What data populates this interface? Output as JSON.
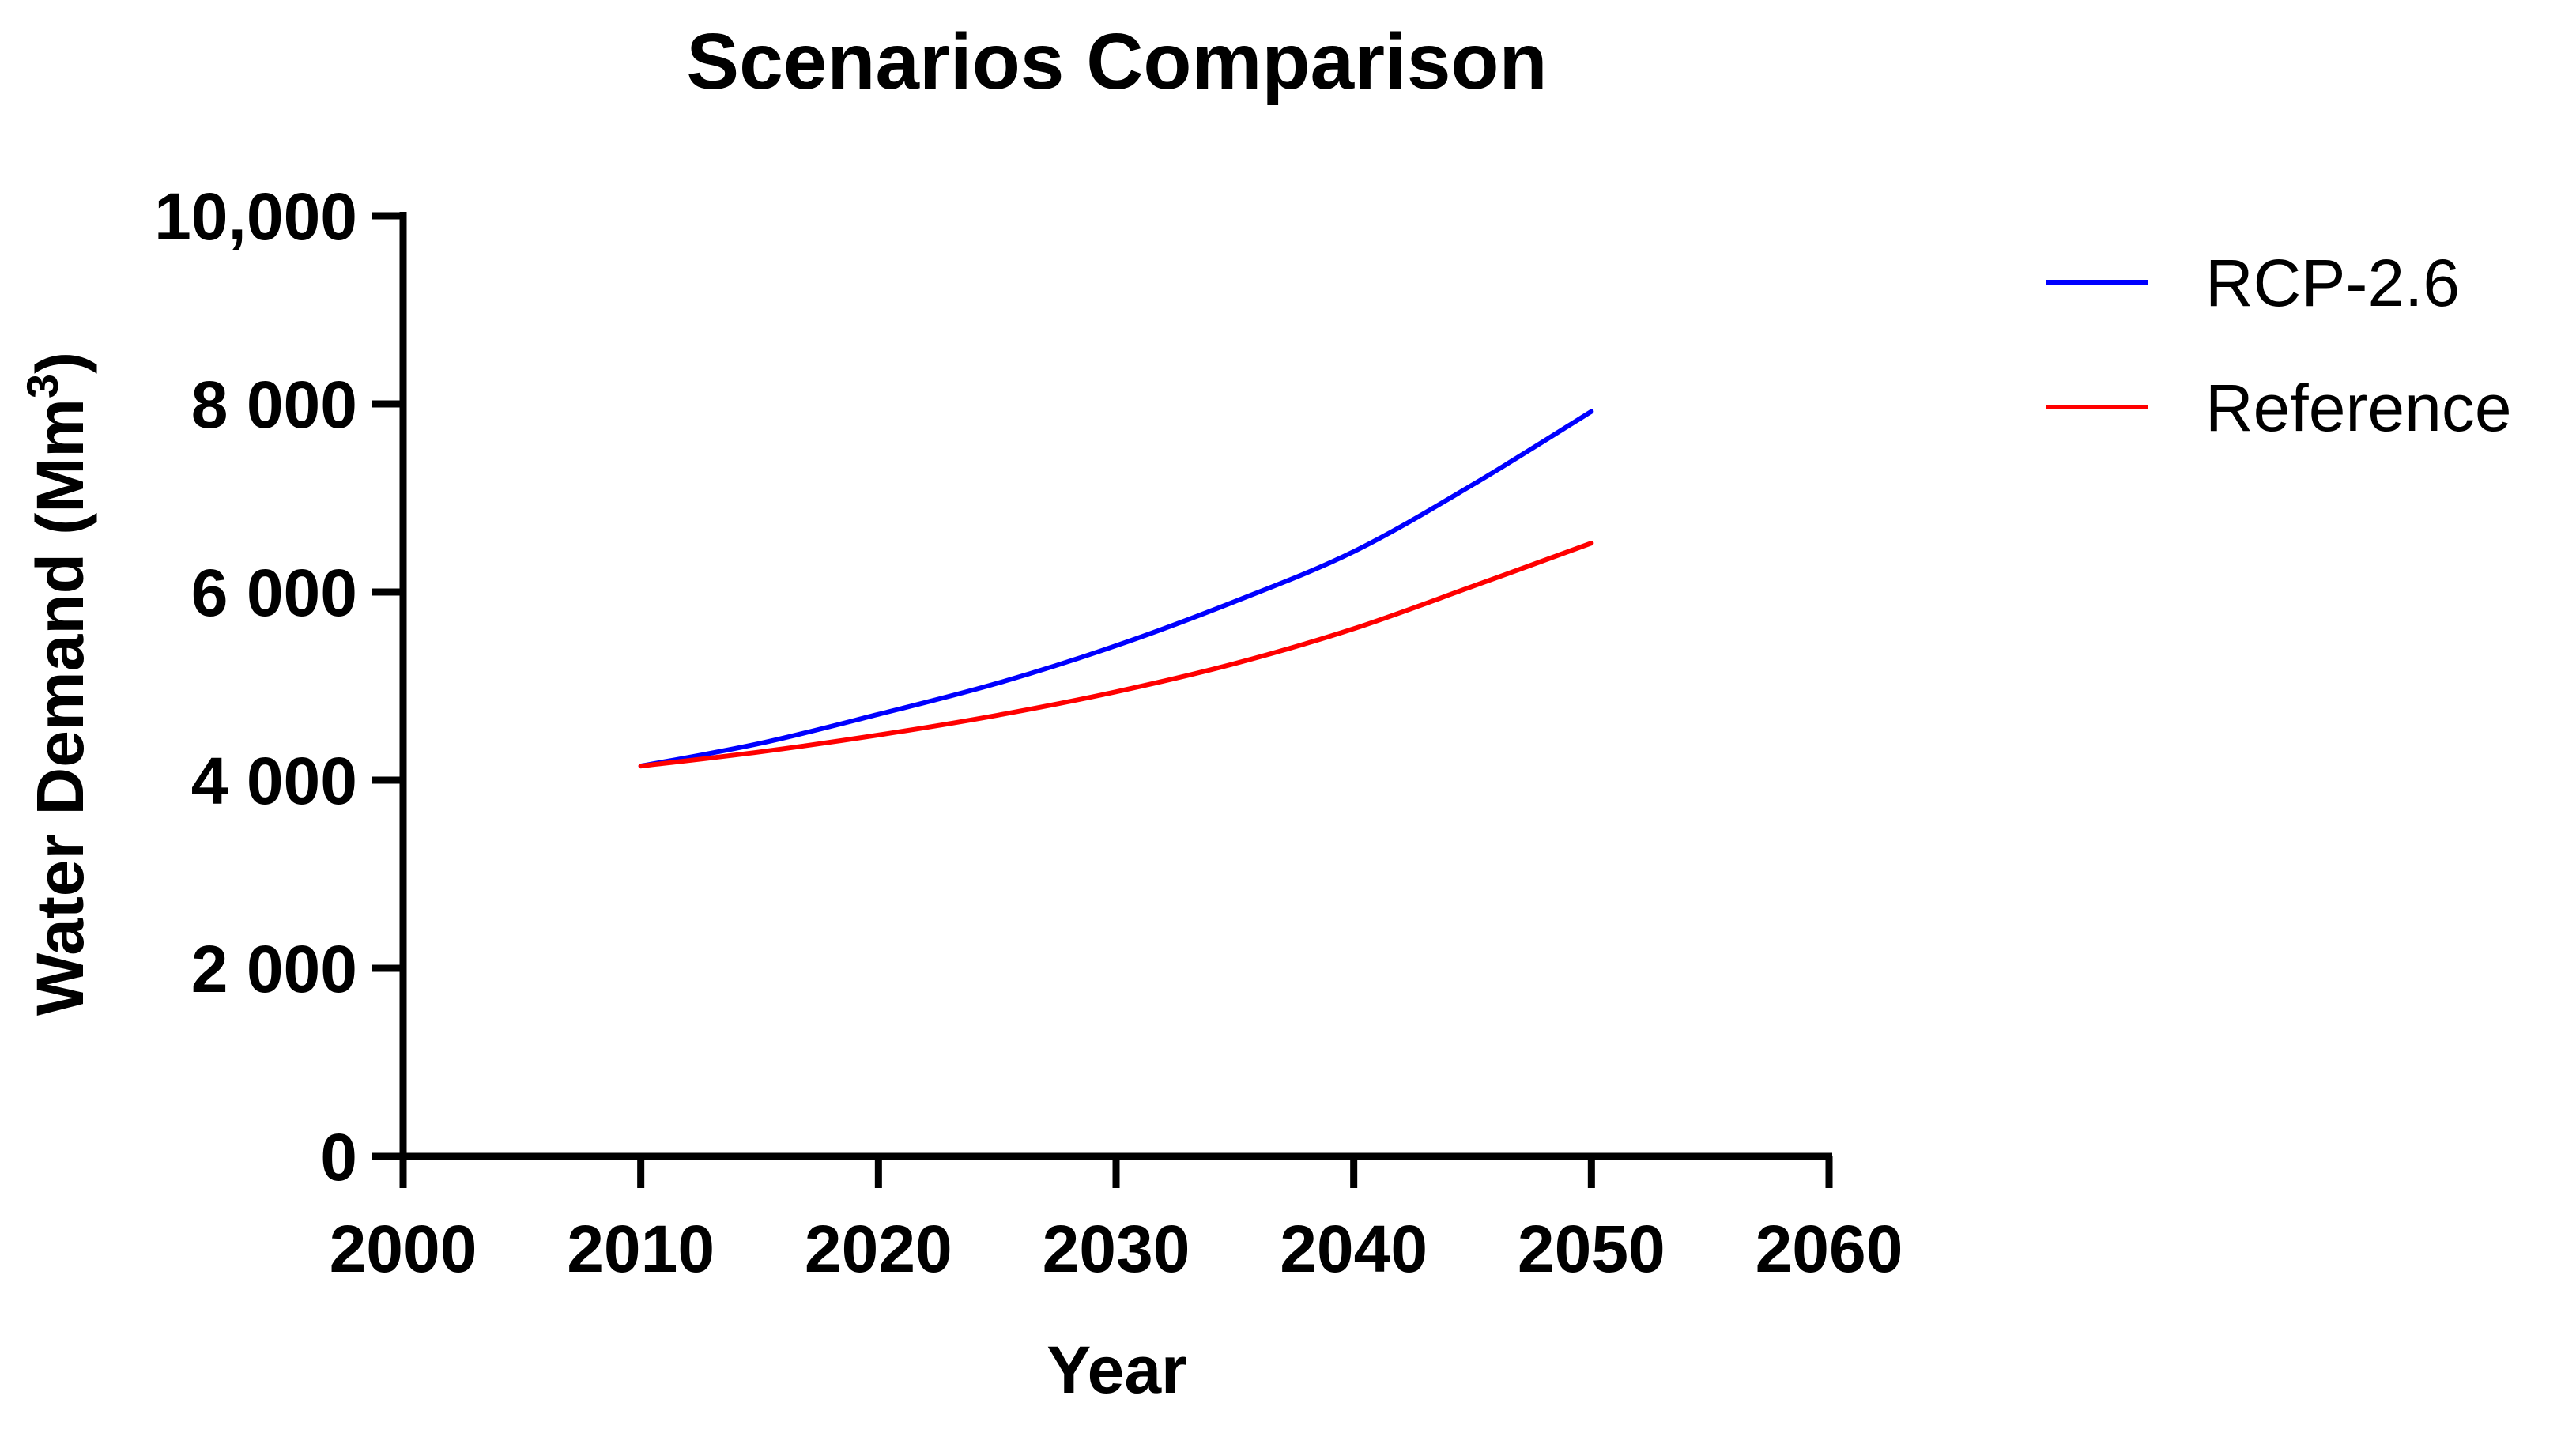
{
  "chart_data": {
    "type": "line",
    "title": "Scenarios Comparison",
    "xlabel": "Year",
    "ylabel": "Water Demand (Mm",
    "ylabel_superscript": "3",
    "ylabel_suffix": ")",
    "xlim": [
      2000,
      2060
    ],
    "ylim": [
      0,
      10000
    ],
    "x_ticks": [
      2000,
      2010,
      2020,
      2030,
      2040,
      2050,
      2060
    ],
    "x_tick_labels": [
      "2000",
      "2010",
      "2020",
      "2030",
      "2040",
      "2050",
      "2060"
    ],
    "y_ticks": [
      0,
      2000,
      4000,
      6000,
      8000,
      10000
    ],
    "y_tick_labels": [
      "0",
      "2 000",
      "4 000",
      "6 000",
      "8 000",
      "10,000"
    ],
    "grid": false,
    "legend_position": "top-right",
    "x": [
      2010,
      2015,
      2020,
      2025,
      2030,
      2035,
      2040,
      2045,
      2050
    ],
    "series": [
      {
        "name": "RCP-2.6",
        "color": "#0000ff",
        "values": [
          4150,
          4390,
          4700,
          5030,
          5430,
          5900,
          6430,
          7140,
          7920
        ]
      },
      {
        "name": "Reference",
        "color": "#ff0000",
        "values": [
          4150,
          4300,
          4480,
          4690,
          4940,
          5240,
          5610,
          6060,
          6520
        ]
      }
    ]
  }
}
